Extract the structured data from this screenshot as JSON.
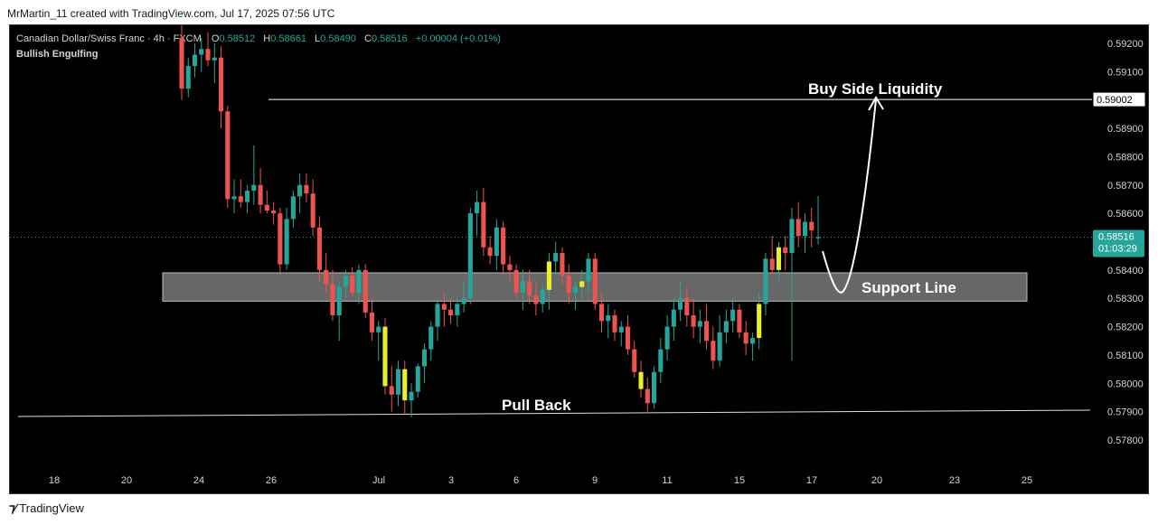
{
  "header": {
    "created_by": "MrMartin_11 created with TradingView.com, Jul 17, 2025 07:56 UTC"
  },
  "legend": {
    "symbol": "Canadian Dollar/Swiss Franc · 4h · FXCM",
    "open_label": "O",
    "open": "0.58512",
    "high_label": "H",
    "high": "0.58661",
    "low_label": "L",
    "low": "0.58490",
    "close_label": "C",
    "close": "0.58516",
    "change": "+0.00004 (+0.01%)",
    "indicator": "Bullish Engulfing"
  },
  "annotations": {
    "buy_side": "Buy Side Liquidity",
    "support": "Support Line",
    "pullback": "Pull Back"
  },
  "price_axis": {
    "ticks": [
      "0.59200",
      "0.59100",
      "0.59002",
      "0.58900",
      "0.58800",
      "0.58700",
      "0.58600",
      "0.58400",
      "0.58300",
      "0.58200",
      "0.58100",
      "0.58000",
      "0.57900",
      "0.57800"
    ],
    "liquidity_level": "0.59002",
    "current_price": "0.58516",
    "countdown": "01:03:29"
  },
  "time_axis": {
    "ticks": [
      "18",
      "20",
      "24",
      "26",
      "Jul",
      "3",
      "6",
      "9",
      "11",
      "15",
      "17",
      "20",
      "23",
      "25"
    ]
  },
  "colors": {
    "up": "#26a69a",
    "down": "#ef5350",
    "engulfing": "#e8f026",
    "support_zone": "#8a8a8a",
    "price_label": "#26a69a"
  },
  "chart_data": {
    "type": "candlestick",
    "symbol": "CADCHF",
    "timeframe": "4h",
    "y_range": [
      0.5772,
      0.5925
    ],
    "x_labels": [
      "18",
      "20",
      "24",
      "26",
      "Jul",
      "3",
      "6",
      "9",
      "11",
      "15",
      "17",
      "20",
      "23",
      "25"
    ],
    "support_zone": [
      0.5829,
      0.5839
    ],
    "liquidity_level": 0.59002,
    "last_close": 0.58516,
    "candles": [
      [
        0.5922,
        0.5928,
        0.59,
        0.5904
      ],
      [
        0.5904,
        0.5915,
        0.5901,
        0.5912
      ],
      [
        0.5912,
        0.592,
        0.5908,
        0.5916
      ],
      [
        0.5916,
        0.5922,
        0.591,
        0.5918
      ],
      [
        0.5918,
        0.5924,
        0.5912,
        0.5914
      ],
      [
        0.5914,
        0.592,
        0.5906,
        0.5915
      ],
      [
        0.5915,
        0.5919,
        0.589,
        0.5896
      ],
      [
        0.5896,
        0.5898,
        0.5862,
        0.5865
      ],
      [
        0.5865,
        0.5872,
        0.586,
        0.5866
      ],
      [
        0.5866,
        0.5872,
        0.5862,
        0.5864
      ],
      [
        0.5864,
        0.587,
        0.586,
        0.5868
      ],
      [
        0.5868,
        0.5884,
        0.5863,
        0.587
      ],
      [
        0.587,
        0.5876,
        0.586,
        0.5863
      ],
      [
        0.5863,
        0.5868,
        0.586,
        0.5861
      ],
      [
        0.5861,
        0.5864,
        0.5856,
        0.586
      ],
      [
        0.586,
        0.5862,
        0.5838,
        0.5842
      ],
      [
        0.5842,
        0.5862,
        0.584,
        0.5858
      ],
      [
        0.5858,
        0.5868,
        0.5855,
        0.5866
      ],
      [
        0.5866,
        0.5874,
        0.586,
        0.587
      ],
      [
        0.587,
        0.5874,
        0.5864,
        0.5867
      ],
      [
        0.5867,
        0.5872,
        0.5852,
        0.5855
      ],
      [
        0.5855,
        0.5859,
        0.5836,
        0.584
      ],
      [
        0.584,
        0.5846,
        0.5832,
        0.5835
      ],
      [
        0.5835,
        0.584,
        0.5822,
        0.5824
      ],
      [
        0.5824,
        0.5836,
        0.5815,
        0.5834
      ],
      [
        0.5834,
        0.584,
        0.583,
        0.5838
      ],
      [
        0.5838,
        0.5841,
        0.5831,
        0.5832
      ],
      [
        0.5832,
        0.5842,
        0.5828,
        0.584
      ],
      [
        0.584,
        0.5842,
        0.5823,
        0.5825
      ],
      [
        0.5825,
        0.583,
        0.5815,
        0.5818
      ],
      [
        0.5818,
        0.5822,
        0.5808,
        0.582
      ],
      [
        0.582,
        0.5823,
        0.5796,
        0.5799
      ],
      [
        0.5799,
        0.5806,
        0.579,
        0.5796
      ],
      [
        0.5796,
        0.5808,
        0.5792,
        0.5805
      ],
      [
        0.5805,
        0.5808,
        0.5789,
        0.5794
      ],
      [
        0.5794,
        0.58,
        0.5788,
        0.5797
      ],
      [
        0.5797,
        0.5807,
        0.5795,
        0.5806
      ],
      [
        0.5806,
        0.5814,
        0.58,
        0.5812
      ],
      [
        0.5812,
        0.5822,
        0.5808,
        0.582
      ],
      [
        0.582,
        0.583,
        0.5815,
        0.5828
      ],
      [
        0.5828,
        0.5832,
        0.582,
        0.5826
      ],
      [
        0.5826,
        0.583,
        0.5821,
        0.5824
      ],
      [
        0.5824,
        0.583,
        0.582,
        0.5828
      ],
      [
        0.5828,
        0.5836,
        0.5825,
        0.583
      ],
      [
        0.583,
        0.5862,
        0.5828,
        0.586
      ],
      [
        0.586,
        0.5868,
        0.5852,
        0.5864
      ],
      [
        0.5864,
        0.5869,
        0.5845,
        0.5848
      ],
      [
        0.5848,
        0.5852,
        0.5842,
        0.5845
      ],
      [
        0.5845,
        0.5858,
        0.584,
        0.5855
      ],
      [
        0.5855,
        0.5857,
        0.5838,
        0.5842
      ],
      [
        0.5842,
        0.5845,
        0.5836,
        0.584
      ],
      [
        0.584,
        0.5842,
        0.583,
        0.5832
      ],
      [
        0.5832,
        0.584,
        0.5826,
        0.5836
      ],
      [
        0.5836,
        0.584,
        0.5828,
        0.5831
      ],
      [
        0.5831,
        0.5836,
        0.5824,
        0.5828
      ],
      [
        0.5828,
        0.5835,
        0.5825,
        0.5833
      ],
      [
        0.5833,
        0.5846,
        0.5826,
        0.5843
      ],
      [
        0.5843,
        0.585,
        0.5838,
        0.5846
      ],
      [
        0.5846,
        0.5848,
        0.5835,
        0.5838
      ],
      [
        0.5838,
        0.5842,
        0.5828,
        0.5832
      ],
      [
        0.5832,
        0.5836,
        0.5826,
        0.5834
      ],
      [
        0.5834,
        0.584,
        0.583,
        0.5836
      ],
      [
        0.5836,
        0.5846,
        0.5832,
        0.5844
      ],
      [
        0.5844,
        0.5846,
        0.5826,
        0.5828
      ],
      [
        0.5828,
        0.5832,
        0.5818,
        0.5822
      ],
      [
        0.5822,
        0.5828,
        0.5816,
        0.5824
      ],
      [
        0.5824,
        0.5826,
        0.5815,
        0.5818
      ],
      [
        0.5818,
        0.5822,
        0.5813,
        0.582
      ],
      [
        0.582,
        0.5824,
        0.581,
        0.5812
      ],
      [
        0.5812,
        0.5815,
        0.5802,
        0.5804
      ],
      [
        0.5804,
        0.5808,
        0.5795,
        0.5798
      ],
      [
        0.5798,
        0.5802,
        0.579,
        0.5793
      ],
      [
        0.5793,
        0.5806,
        0.5791,
        0.5804
      ],
      [
        0.5804,
        0.5816,
        0.58,
        0.5812
      ],
      [
        0.5812,
        0.5824,
        0.5808,
        0.582
      ],
      [
        0.582,
        0.583,
        0.5815,
        0.5826
      ],
      [
        0.5826,
        0.5836,
        0.5822,
        0.583
      ],
      [
        0.583,
        0.5834,
        0.582,
        0.5824
      ],
      [
        0.5824,
        0.583,
        0.5816,
        0.582
      ],
      [
        0.582,
        0.5826,
        0.5814,
        0.5822
      ],
      [
        0.5822,
        0.5828,
        0.5812,
        0.5815
      ],
      [
        0.5815,
        0.582,
        0.5805,
        0.5808
      ],
      [
        0.5808,
        0.5824,
        0.5806,
        0.5818
      ],
      [
        0.5818,
        0.5826,
        0.5814,
        0.5822
      ],
      [
        0.5822,
        0.583,
        0.5818,
        0.5826
      ],
      [
        0.5826,
        0.5828,
        0.5816,
        0.5818
      ],
      [
        0.5818,
        0.5822,
        0.581,
        0.5814
      ],
      [
        0.5814,
        0.5818,
        0.5808,
        0.5816
      ],
      [
        0.5816,
        0.5832,
        0.5812,
        0.5828
      ],
      [
        0.5828,
        0.5846,
        0.5824,
        0.5844
      ],
      [
        0.5844,
        0.5852,
        0.5838,
        0.584
      ],
      [
        0.584,
        0.585,
        0.5836,
        0.5848
      ],
      [
        0.5848,
        0.5852,
        0.584,
        0.5846
      ],
      [
        0.5846,
        0.5862,
        0.5808,
        0.5858
      ],
      [
        0.5858,
        0.5864,
        0.5848,
        0.5852
      ],
      [
        0.5852,
        0.586,
        0.5846,
        0.5857
      ],
      [
        0.5857,
        0.5862,
        0.5848,
        0.5854
      ],
      [
        0.58512,
        0.58661,
        0.5849,
        0.58516
      ]
    ],
    "engulfing_indices": [
      31,
      34,
      56,
      61,
      70,
      88,
      91
    ]
  }
}
